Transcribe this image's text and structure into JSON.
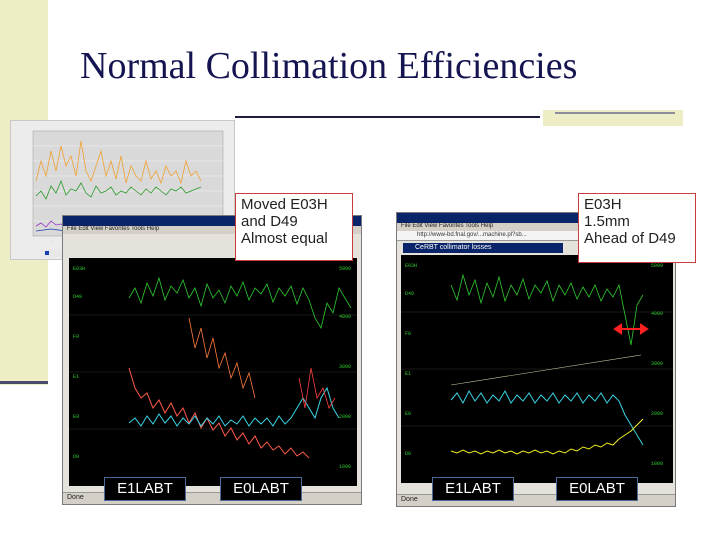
{
  "slide": {
    "title": "Normal Collimation Efficiencies"
  },
  "callouts": {
    "left": [
      "Moved E03H",
      "and D49",
      "Almost equal"
    ],
    "right": [
      "E03H",
      "1.5mm",
      "Ahead of D49"
    ]
  },
  "labels": [
    "E1LABT",
    "E0LABT",
    "E1LABT",
    "E0LABT"
  ],
  "screens": {
    "right_url": "http://www-bd.fnal.gov/...machine.pl?sb...",
    "right_app_title": "CeRBT collimator losses",
    "menu": "File  Edit  View  Favorites  Tools  Help",
    "status": "Done"
  },
  "colors": {
    "title": "#141450",
    "callout_border": "#c83c3c",
    "trace_green": "#2ecc2e",
    "trace_red": "#ff5a4a",
    "trace_cyan": "#3ad6e6",
    "trace_yellow": "#f0f020"
  }
}
